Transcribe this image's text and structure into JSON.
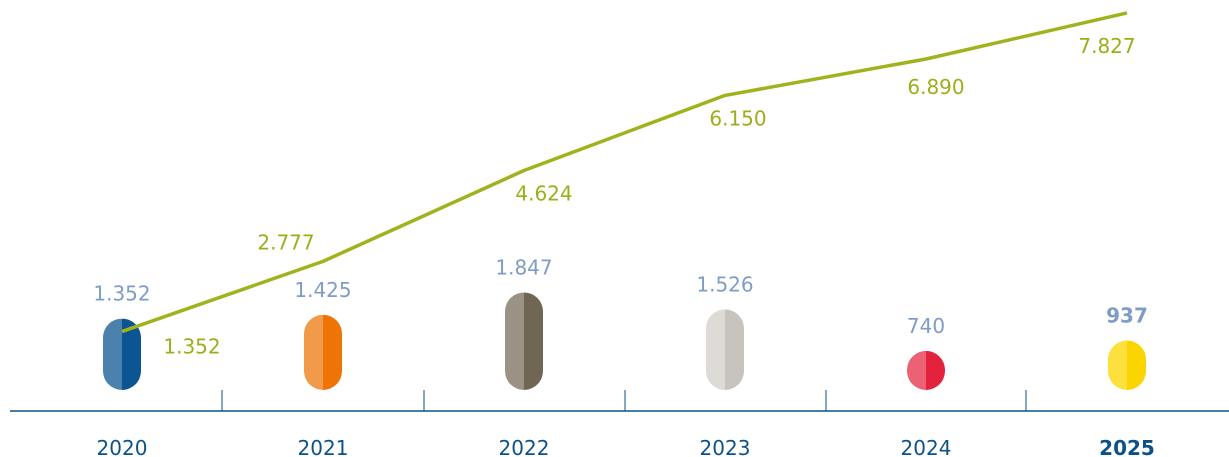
{
  "chart_data": {
    "type": "bar+line",
    "categories": [
      "2020",
      "2021",
      "2022",
      "2023",
      "2024",
      "2025"
    ],
    "highlight_category": "2025",
    "bar_series": {
      "values": [
        1352,
        1425,
        1847,
        1526,
        740,
        937
      ],
      "labels": [
        "1.352",
        "1.425",
        "1.847",
        "1.526",
        "740",
        "937"
      ],
      "colors": [
        [
          "#4a82ad",
          "#0d5592"
        ],
        [
          "#f19a4a",
          "#ee7406"
        ],
        [
          "#9a9285",
          "#6f6754"
        ],
        [
          "#dedad5",
          "#c9c3bd"
        ],
        [
          "#ec6174",
          "#e3233d"
        ],
        [
          "#fde03d",
          "#fcd500"
        ]
      ]
    },
    "line_series": {
      "values": [
        1352,
        2777,
        4624,
        6150,
        6890,
        7827
      ],
      "labels": [
        "1.352",
        "2.777",
        "4.624",
        "6.150",
        "6.890",
        "7.827"
      ],
      "color": "#a0b31d"
    },
    "axis_color": "#0d5286",
    "year_label_color": "#0d5286",
    "bar_label_color": "#7f9cc6"
  }
}
